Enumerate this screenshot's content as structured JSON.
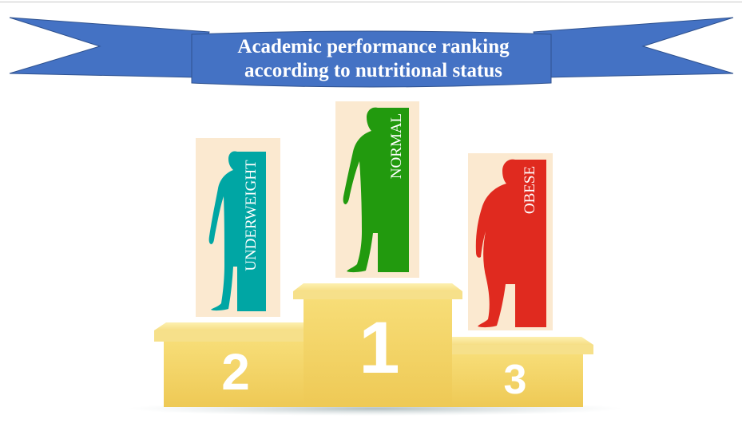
{
  "banner": {
    "line1": "Academic performance ranking",
    "line2": "according to nutritional status",
    "color": "#4472c4"
  },
  "podium": {
    "first": {
      "rank": "1",
      "label": "NORMAL",
      "color": "#229a0e"
    },
    "second": {
      "rank": "2",
      "label": "UNDERWEIGHT",
      "color": "#00a6a4"
    },
    "third": {
      "rank": "3",
      "label": "OBESE",
      "color": "#e02a1f"
    },
    "card_color": "#fbe9d0",
    "podium_color": "#f5d76e"
  }
}
